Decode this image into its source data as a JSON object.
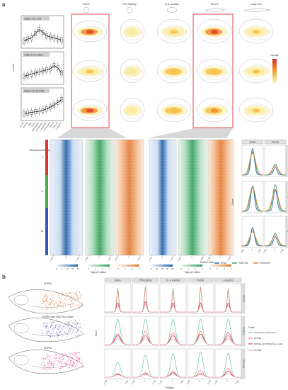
{
  "panel_a": {
    "letter": "a",
    "stages": [
      "Dome",
      "75% Epiboly",
      "6–8 somites",
      "Prim-5",
      "Long-Pec"
    ],
    "classes": [
      {
        "label": "Class 4 (9,714)",
        "marker": "4"
      },
      {
        "label": "Class 6 (11,360)",
        "marker": "6"
      },
      {
        "label": "Class 14 (14,932)",
        "marker": "14"
      }
    ],
    "boxplot_ylabel": "z-score",
    "timepoints": [
      "64-cell",
      "256-cell",
      "High",
      "Dome",
      "30% Epiboly",
      "75% Epiboly",
      "1-4 somites",
      "6-8 somites",
      "Prim-5",
      "Prim-25",
      "Long-Pec"
    ],
    "dev_stage_label": "Developmental stage",
    "density_label": "Density",
    "tags_label": "Tags per million",
    "heat_ticks": [
      "-2,000",
      "0",
      "2,000"
    ],
    "scale_atac": [
      "0",
      "5",
      "10",
      "15",
      "20"
    ],
    "scale_h3k27ac_left": [
      "0",
      "1",
      "2",
      "3"
    ],
    "scale_h3k4me1_left": [
      "0",
      "1",
      "2",
      "3"
    ],
    "scale_atac_right": [
      "0",
      "20",
      "40",
      "60",
      "80"
    ],
    "scale_h3k27ac_right": [
      "0",
      "1",
      "2",
      "3"
    ],
    "scale_h3k4me1_right": [
      "0",
      "1",
      "2",
      "3"
    ],
    "profile_cols": [
      "Dome",
      "Prim-5"
    ],
    "profile_rows": [
      "4",
      "6",
      "14"
    ],
    "profile_ylabel": "Score",
    "profile_xticks": [
      "-2,000",
      "0",
      "2,000"
    ],
    "histone_label": "Histone mark",
    "legend": [
      "ATAC",
      "H3K27ac",
      "H3K4me1"
    ]
  },
  "panel_b": {
    "letter": "b",
    "embryo_labels": [
      "DOPEs",
      "DOPEs with H3K27ac in adult",
      "DOPEs"
    ],
    "stage_cols": [
      "Dome",
      "75% Epiboly",
      "6 – 8 somites",
      "Prim-5",
      "Long-Pec"
    ],
    "row_labels": [
      "DEV28",
      "H3K27ac",
      "H3K4me1"
    ],
    "score_label": "Score",
    "position_label": "Position",
    "xticks": [
      "-2,000",
      "0",
      "2,000"
    ],
    "class_label": "Class",
    "legend": [
      "Constitutive enhancers",
      "DOPEs",
      "DOPEs with H3K27ac in adult",
      "DOPEs"
    ]
  },
  "colors": {
    "atac": "#1f5fa8",
    "h3k27ac": "#2e9e58",
    "h3k4me1": "#e2772f",
    "highlight": "#e0303c",
    "class4": "#d93333",
    "class6": "#4aa84a",
    "class14": "#3358b0",
    "constitutive": "#7ec9a8",
    "dopes": "#e08a7a",
    "dopes_adult": "#c9406e",
    "embryo_orange": "#e8742a",
    "embryo_purple": "#6b63b8",
    "embryo_magenta": "#e0308a"
  }
}
